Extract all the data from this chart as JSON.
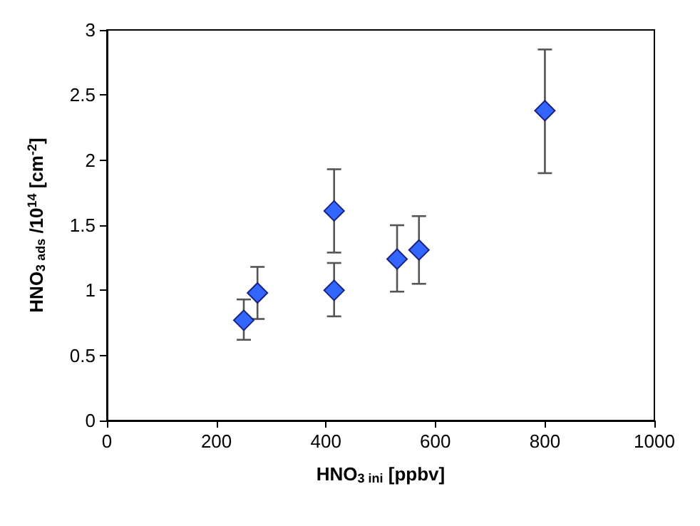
{
  "chart_data": {
    "type": "scatter",
    "xlabel": "HNO$_{3 ini}$ [ppbv]",
    "ylabel": "HNO$_{3 ads}$ /10$^{14}$ [cm$^{-2}$]",
    "x": [
      250,
      275,
      415,
      415,
      530,
      570,
      800
    ],
    "series": [
      {
        "color": "#3366ff",
        "values": [
          0.77,
          0.98,
          1.61,
          1.0,
          1.24,
          1.31,
          2.38
        ],
        "errors": [
          [
            0.62,
            0.93
          ],
          [
            0.78,
            1.18
          ],
          [
            1.29,
            1.93
          ],
          [
            0.8,
            1.21
          ],
          [
            0.99,
            1.5
          ],
          [
            1.05,
            1.57
          ],
          [
            1.9,
            2.85
          ]
        ]
      }
    ],
    "xlim": [
      0,
      1000
    ],
    "xticks": [
      0,
      200,
      400,
      600,
      800,
      1000
    ],
    "ylim": [
      0,
      3
    ],
    "yticks": [
      0,
      0.5,
      1,
      1.5,
      2,
      2.5,
      3
    ],
    "grid": false,
    "marker": "diamond"
  }
}
